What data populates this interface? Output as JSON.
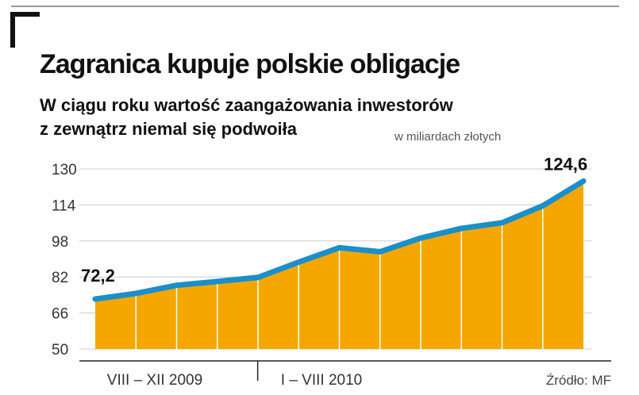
{
  "chart_data": {
    "type": "area",
    "title": "Zagranica kupuje polskie obligacje",
    "subtitle": [
      "W ciągu roku wartość zaangażowania inwestorów",
      "z zewnątrz niemal się podwoiła"
    ],
    "unit_label": "w miliardach złotych",
    "source": "Źródło: MF",
    "categories": [
      null,
      null,
      null,
      null,
      null,
      null,
      null,
      null,
      null,
      null,
      null,
      null,
      null
    ],
    "x_groups": [
      {
        "label": "VIII – XII 2009",
        "count": 5
      },
      {
        "label": "I – VIII 2010",
        "count": 8
      }
    ],
    "values": [
      72.2,
      74.7,
      78.3,
      80.0,
      81.8,
      88.6,
      95.0,
      93.2,
      99.3,
      103.6,
      106.1,
      113.6,
      124.6
    ],
    "value_labels": [
      "72,2",
      null,
      null,
      null,
      null,
      null,
      null,
      null,
      null,
      null,
      null,
      null,
      "124,6"
    ],
    "line_color": "#1a8fc9",
    "fill_color": "#f5a700",
    "ylim": [
      50,
      130
    ],
    "yticks": [
      50,
      66,
      82,
      98,
      114,
      130
    ],
    "grid": true
  }
}
